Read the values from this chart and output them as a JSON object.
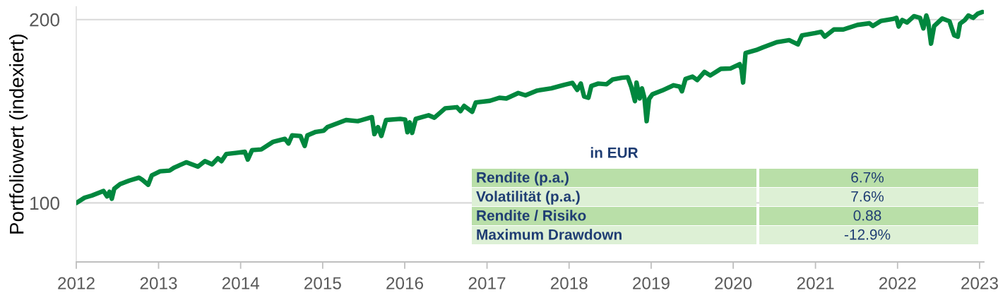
{
  "chart_data": {
    "type": "line",
    "ylabel": "Portfoliowert (indexiert)",
    "x": [
      "2012-01-02",
      "2012-02-07",
      "2012-03-10",
      "2012-05-01",
      "2012-05-17",
      "2012-05-28",
      "2012-06-07",
      "2012-06-18",
      "2012-07-14",
      "2012-08-24",
      "2012-10-06",
      "2012-10-21",
      "2012-11-16",
      "2012-12-02",
      "2013-01-08",
      "2013-02-19",
      "2013-03-12",
      "2013-05-04",
      "2013-06-25",
      "2013-07-26",
      "2013-08-27",
      "2013-09-22",
      "2013-10-08",
      "2013-10-29",
      "2013-12-10",
      "2014-01-20",
      "2014-02-02",
      "2014-02-21",
      "2014-04-03",
      "2014-05-26",
      "2014-07-17",
      "2014-08-02",
      "2014-08-18",
      "2014-09-24",
      "2014-10-13",
      "2014-10-25",
      "2014-12-01",
      "2015-01-06",
      "2015-01-22",
      "2015-04-15",
      "2015-06-06",
      "2015-08-08",
      "2015-08-19",
      "2015-09-04",
      "2015-09-19",
      "2015-10-10",
      "2015-12-12",
      "2016-01-03",
      "2016-01-13",
      "2016-01-23",
      "2016-02-03",
      "2016-02-19",
      "2016-04-16",
      "2016-05-12",
      "2016-06-29",
      "2016-08-20",
      "2016-09-05",
      "2016-09-21",
      "2016-10-27",
      "2016-11-12",
      "2017-01-14",
      "2017-02-25",
      "2017-03-28",
      "2017-05-20",
      "2017-06-21",
      "2017-08-12",
      "2017-10-14",
      "2017-12-11",
      "2018-01-16",
      "2018-02-06",
      "2018-02-22",
      "2018-03-09",
      "2018-03-28",
      "2018-04-10",
      "2018-05-11",
      "2018-06-17",
      "2018-07-13",
      "2018-08-24",
      "2018-09-19",
      "2018-10-05",
      "2018-10-21",
      "2018-10-28",
      "2018-11-11",
      "2018-11-21",
      "2018-12-02",
      "2018-12-12",
      "2018-12-23",
      "2019-01-07",
      "2019-02-18",
      "2019-04-11",
      "2019-05-08",
      "2019-05-18",
      "2019-06-03",
      "2019-07-04",
      "2019-07-25",
      "2019-08-26",
      "2019-09-21",
      "2019-11-07",
      "2019-12-19",
      "2020-01-30",
      "2020-02-07",
      "2020-02-14",
      "2020-02-25",
      "2020-04-12",
      "2020-05-13",
      "2020-07-15",
      "2020-09-06",
      "2020-10-15",
      "2020-11-02",
      "2020-12-30",
      "2021-01-26",
      "2021-02-11",
      "2021-03-24",
      "2021-05-05",
      "2021-07-07",
      "2021-08-29",
      "2021-09-13",
      "2021-10-20",
      "2021-12-11",
      "2021-12-27",
      "2022-01-06",
      "2022-01-22",
      "2022-02-12",
      "2022-03-15",
      "2022-04-11",
      "2022-04-26",
      "2022-05-09",
      "2022-05-17",
      "2022-05-30",
      "2022-06-13",
      "2022-07-19",
      "2022-08-20",
      "2022-09-10",
      "2022-09-26",
      "2022-10-06",
      "2022-10-27",
      "2022-11-12",
      "2022-12-03",
      "2022-12-23",
      "2023-01-13"
    ],
    "series": [
      {
        "color": "#00873e",
        "values": [
          100.0,
          102.0,
          102.8,
          104.6,
          102.5,
          104.3,
          101.6,
          105.5,
          107.4,
          108.8,
          110.0,
          109.1,
          107.1,
          111.0,
          112.7,
          113.0,
          114.3,
          116.6,
          114.7,
          117.1,
          115.7,
          118.4,
          117.1,
          120.3,
          120.8,
          121.3,
          117.8,
          122.1,
          122.4,
          126.0,
          127.4,
          125.2,
          129.1,
          128.8,
          124.0,
          129.1,
          130.8,
          131.4,
          133.2,
          136.8,
          136.2,
          138.3,
          129.7,
          133.2,
          128.8,
          136.8,
          137.4,
          137.0,
          130.6,
          135.6,
          130.3,
          137.4,
          139.3,
          138.0,
          143.0,
          143.6,
          141.5,
          144.3,
          141.1,
          146.2,
          147.1,
          148.8,
          148.4,
          151.5,
          150.2,
          152.9,
          154.2,
          156.3,
          157.4,
          153.3,
          157.0,
          149.5,
          148.8,
          155.6,
          157.0,
          156.6,
          159.4,
          160.5,
          160.8,
          154.9,
          146.9,
          157.6,
          148.4,
          154.2,
          148.8,
          136.2,
          148.2,
          150.8,
          152.9,
          156.0,
          155.2,
          152.5,
          159.8,
          161.2,
          159.1,
          164.1,
          161.9,
          166.0,
          166.2,
          169.0,
          165.6,
          157.6,
          176.2,
          178.2,
          180.1,
          183.7,
          185.0,
          182.1,
          188.4,
          190.0,
          190.9,
          187.5,
          192.6,
          192.6,
          196.0,
          197.2,
          195.2,
          199.0,
          200.4,
          201.3,
          194.8,
          199.6,
          197.8,
          202.6,
          201.3,
          193.4,
          203.1,
          198.7,
          182.6,
          195.2,
          200.8,
          198.7,
          188.4,
          187.5,
          196.9,
          199.6,
          203.1,
          201.3,
          204.4,
          205.8
        ]
      }
    ],
    "line_style": "solid",
    "log": true,
    "grid": "y",
    "xlim": [
      "2012-01-01",
      "2023-01-20"
    ],
    "xticks": [
      "2012",
      "2013",
      "2014",
      "2015",
      "2016",
      "2017",
      "2018",
      "2019",
      "2020",
      "2021",
      "2022",
      "2023"
    ],
    "ylim": [
      80,
      210
    ],
    "yticks": [
      100,
      200
    ],
    "annotations": [
      "in EUR",
      "Rendite (p.a.)",
      "6.7%",
      "Volatilität (p.a.)",
      "7.6%",
      "Rendite / Risiko",
      "0.88",
      "Maximum Drawdown",
      "-12.9%"
    ]
  }
}
